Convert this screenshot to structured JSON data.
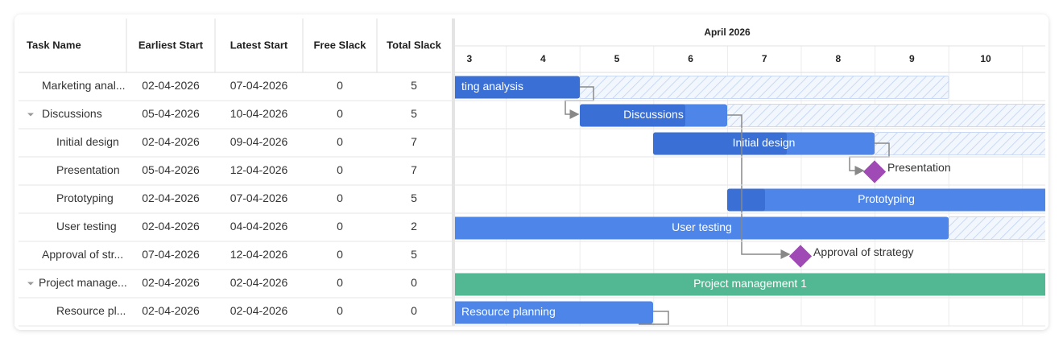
{
  "grid": {
    "columns": [
      "Task Name",
      "Earliest Start",
      "Latest Start",
      "Free Slack",
      "Total Slack"
    ],
    "rows": [
      [
        "Marketing anal...",
        "02-04-2026",
        "07-04-2026",
        0,
        5
      ],
      [
        "Discussions",
        "05-04-2026",
        "10-04-2026",
        0,
        5
      ],
      [
        "Initial design",
        "02-04-2026",
        "09-04-2026",
        0,
        7
      ],
      [
        "Presentation",
        "05-04-2026",
        "12-04-2026",
        0,
        7
      ],
      [
        "Prototyping",
        "02-04-2026",
        "07-04-2026",
        0,
        5
      ],
      [
        "User testing",
        "02-04-2026",
        "04-04-2026",
        0,
        2
      ],
      [
        "Approval of str...",
        "07-04-2026",
        "12-04-2026",
        0,
        5
      ],
      [
        "Project manage...",
        "02-04-2026",
        "02-04-2026",
        0,
        0
      ],
      [
        "Resource pl...",
        "02-04-2026",
        "02-04-2026",
        0,
        0
      ]
    ]
  },
  "timeline": {
    "month": "April 2026",
    "days": [
      "3",
      "4",
      "5",
      "6",
      "7",
      "8",
      "9",
      "10"
    ]
  },
  "bars": [
    "ting analysis",
    "Discussions",
    "Initial design",
    "Presentation",
    "Prototyping",
    "User testing",
    "Approval of strategy",
    "Project management 1",
    "Resource planning"
  ]
}
